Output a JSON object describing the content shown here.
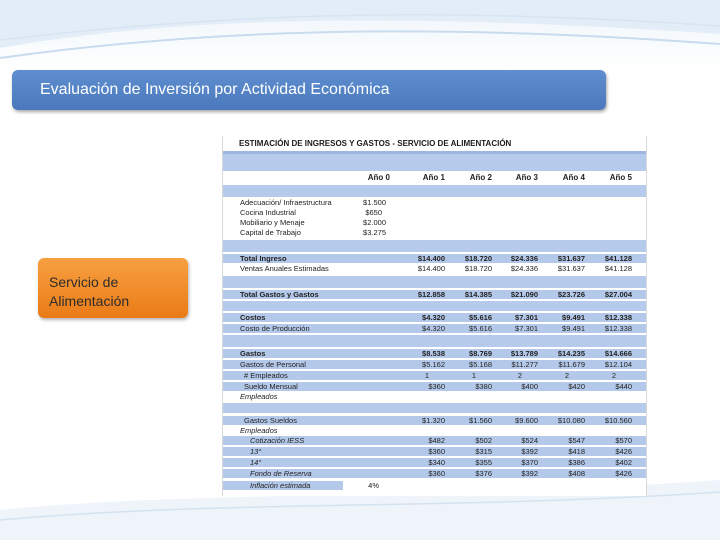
{
  "slide": {
    "title": "Evaluación de Inversión por Actividad Económica",
    "side_label_line1": "Servicio de",
    "side_label_line2": "Alimentación"
  },
  "sheet": {
    "title": "ESTIMACIÓN DE INGRESOS Y GASTOS  - SERVICIO DE ALIMENTACIÓN",
    "headers": [
      "Año 0",
      "Año 1",
      "Año 2",
      "Año 3",
      "Año 4",
      "Año 5"
    ],
    "rows": {
      "adecuacion": {
        "label": "Adecuación/ Infraestructura",
        "y0": "$1.500"
      },
      "cocina": {
        "label": "Cocina Industrial",
        "y0": "$650"
      },
      "mobiliario": {
        "label": "Mobiliario y Menaje",
        "y0": "$2.000"
      },
      "capital": {
        "label": "Capital de Trabajo",
        "y0": "$3.275"
      },
      "total_ingreso": {
        "label": "Total Ingreso",
        "y1": "$14.400",
        "y2": "$18.720",
        "y3": "$24.336",
        "y4": "$31.637",
        "y5": "$41.128"
      },
      "ventas": {
        "label": "Ventas Anuales Estimadas",
        "y1": "$14.400",
        "y2": "$18.720",
        "y3": "$24.336",
        "y4": "$31.637",
        "y5": "$41.128"
      },
      "total_gastos": {
        "label": "Total Gastos y Gastos",
        "y1": "$12.858",
        "y2": "$14.385",
        "y3": "$21.090",
        "y4": "$23.726",
        "y5": "$27.004"
      },
      "costos": {
        "label": "Costos",
        "y1": "$4.320",
        "y2": "$5.616",
        "y3": "$7.301",
        "y4": "$9.491",
        "y5": "$12.338"
      },
      "costo_prod": {
        "label": "Costo de Producción",
        "y1": "$4.320",
        "y2": "$5.616",
        "y3": "$7.301",
        "y4": "$9.491",
        "y5": "$12.338"
      },
      "gastos": {
        "label": "Gastos",
        "y1": "$8.538",
        "y2": "$8.769",
        "y3": "$13.789",
        "y4": "$14.235",
        "y5": "$14.666"
      },
      "gastos_personal": {
        "label": "Gastos de Personal",
        "y1": "$5.162",
        "y2": "$5.168",
        "y3": "$11.277",
        "y4": "$11.679",
        "y5": "$12.104"
      },
      "num_empleados": {
        "label": "# Empleados",
        "y1": "1",
        "y2": "1",
        "y3": "2",
        "y4": "2",
        "y5": "2"
      },
      "sueldo": {
        "label": "Sueldo Mensual",
        "label2": "Empleados",
        "y1": "$360",
        "y2": "$380",
        "y3": "$400",
        "y4": "$420",
        "y5": "$440"
      },
      "gastos_sueldos": {
        "label": "Gastos Sueldos",
        "label2": "Empleados",
        "y1": "$1.320",
        "y2": "$1.560",
        "y3": "$9.600",
        "y4": "$10.080",
        "y5": "$10.560"
      },
      "iess": {
        "label": "Cotización IESS",
        "y1": "$482",
        "y2": "$502",
        "y3": "$524",
        "y4": "$547",
        "y5": "$570"
      },
      "d13": {
        "label": "13°",
        "y1": "$360",
        "y2": "$315",
        "y3": "$392",
        "y4": "$418",
        "y5": "$426"
      },
      "d14": {
        "label": "14°",
        "y1": "$340",
        "y2": "$355",
        "y3": "$370",
        "y4": "$386",
        "y5": "$402"
      },
      "fondo": {
        "label": "Fondo de Reserva",
        "y1": "$360",
        "y2": "$376",
        "y3": "$392",
        "y4": "$408",
        "y5": "$426"
      },
      "inflacion": {
        "label": "Inflación estimada",
        "y0": "4%"
      }
    }
  }
}
